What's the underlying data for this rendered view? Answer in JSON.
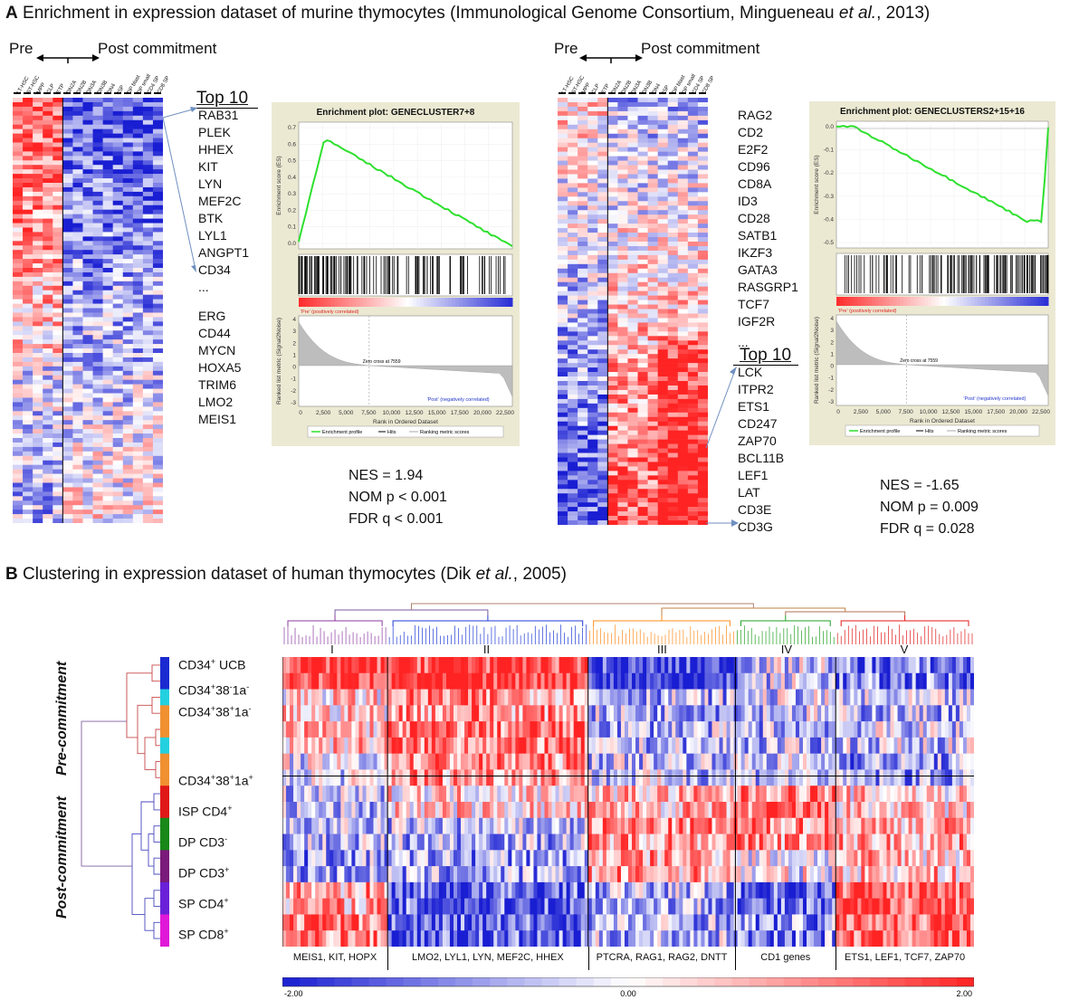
{
  "panel_a": {
    "letter": "A",
    "title": "Enrichment in expression dataset of murine thymocytes (Immunological Genome Consortium, Mingueneau et al., 2013)",
    "pre_label": "Pre",
    "post_label": "Post commitment",
    "column_labels": [
      "LT-HSC",
      "ST-HSC",
      "MPP",
      "CLP",
      "ETP",
      "DN2A",
      "DN2B",
      "DN3A",
      "DN3B",
      "DN4",
      "ISP",
      "DP blast",
      "DP small",
      "CD4 SP",
      "CD8 SP"
    ],
    "left": {
      "top10_label": "Top 10",
      "genes_top": [
        "RAB31",
        "PLEK",
        "HHEX",
        "KIT",
        "LYN",
        "MEF2C",
        "BTK",
        "LYL1",
        "ANGPT1",
        "CD34"
      ],
      "ellipsis": "...",
      "genes_bottom": [
        "ERG",
        "CD44",
        "MYCN",
        "HOXA5",
        "TRIM6",
        "LMO2",
        "MEIS1"
      ],
      "nes": "NES = 1.94",
      "nom_p": "NOM p < 0.001",
      "fdr_q": "FDR q < 0.001",
      "plot_title": "Enrichment plot: GENECLUSTER7+8"
    },
    "right": {
      "genes_top": [
        "RAG2",
        "CD2",
        "E2F2",
        "CD96",
        "CD8A",
        "ID3",
        "CD28",
        "SATB1",
        "IKZF3",
        "GATA3",
        "RASGRP1",
        "TCF7",
        "IGF2R"
      ],
      "ellipsis": "...",
      "top10_label": "Top 10",
      "genes_bottom": [
        "LCK",
        "ITPR2",
        "ETS1",
        "CD247",
        "ZAP70",
        "BCL11B",
        "LEF1",
        "LAT",
        "CD3E",
        "CD3G"
      ],
      "nes": "NES = -1.65",
      "nom_p": "NOM p = 0.009",
      "fdr_q": "FDR q = 0.028",
      "plot_title": "Enrichment plot: GENECLUSTERS2+15+16"
    },
    "gsea_common": {
      "es_axis": "Enrichment score (ES)",
      "metric_axis": "Ranked list metric (Signal2Noise)",
      "x_axis": "Rank in Ordered Dataset",
      "pre_corr": "'Pre' (positively correlated)",
      "post_corr": "'Post' (negatively correlated)",
      "zero_cross": "Zero cross at 7559",
      "legend": [
        "Enrichment profile",
        "Hits",
        "Ranking metric scores"
      ],
      "x_ticks": [
        "0",
        "2,500",
        "5,000",
        "7,500",
        "10,000",
        "12,500",
        "15,000",
        "17,500",
        "20,000",
        "22,500"
      ]
    }
  },
  "panel_b": {
    "letter": "B",
    "title": "Clustering in expression dataset of human thymocytes (Dik et al., 2005)",
    "pre_label": "Pre-commitment",
    "post_label": "Post-commitment",
    "clusters": [
      "I",
      "II",
      "III",
      "IV",
      "V"
    ],
    "row_labels": [
      {
        "base": "CD34",
        "sup": "+",
        "rest": " UCB",
        "sup2": ""
      },
      {
        "base": "CD34",
        "sup": "+",
        "rest": "38",
        "sup2": "-",
        "rest2": "1a",
        "sup3": "-"
      },
      {
        "base": "CD34",
        "sup": "+",
        "rest": "38",
        "sup2": "+",
        "rest2": "1a",
        "sup3": "-"
      },
      {
        "base": "CD34",
        "sup": "+",
        "rest": "38",
        "sup2": "+",
        "rest2": "1a",
        "sup3": "+"
      },
      {
        "base": "ISP CD4",
        "sup": "+",
        "rest": "",
        "sup2": ""
      },
      {
        "base": "DP CD3",
        "sup": "-",
        "rest": "",
        "sup2": ""
      },
      {
        "base": "DP CD3",
        "sup": "+",
        "rest": "",
        "sup2": ""
      },
      {
        "base": "SP CD4",
        "sup": "+",
        "rest": "",
        "sup2": ""
      },
      {
        "base": "SP CD8",
        "sup": "+",
        "rest": "",
        "sup2": ""
      }
    ],
    "cluster_genes": [
      "MEIS1, KIT, HOPX",
      "LMO2, LYL1, LYN, MEF2C, HHEX",
      "PTCRA, RAG1, RAG2, DNTT",
      "CD1 genes",
      "ETS1, LEF1, TCF7, ZAP70"
    ],
    "scale_min": "-2.00",
    "scale_mid": "0.00",
    "scale_max": "2.00",
    "colors": {
      "red": "#e8191c",
      "blue": "#1d21d6",
      "white": "#ffffff"
    }
  }
}
